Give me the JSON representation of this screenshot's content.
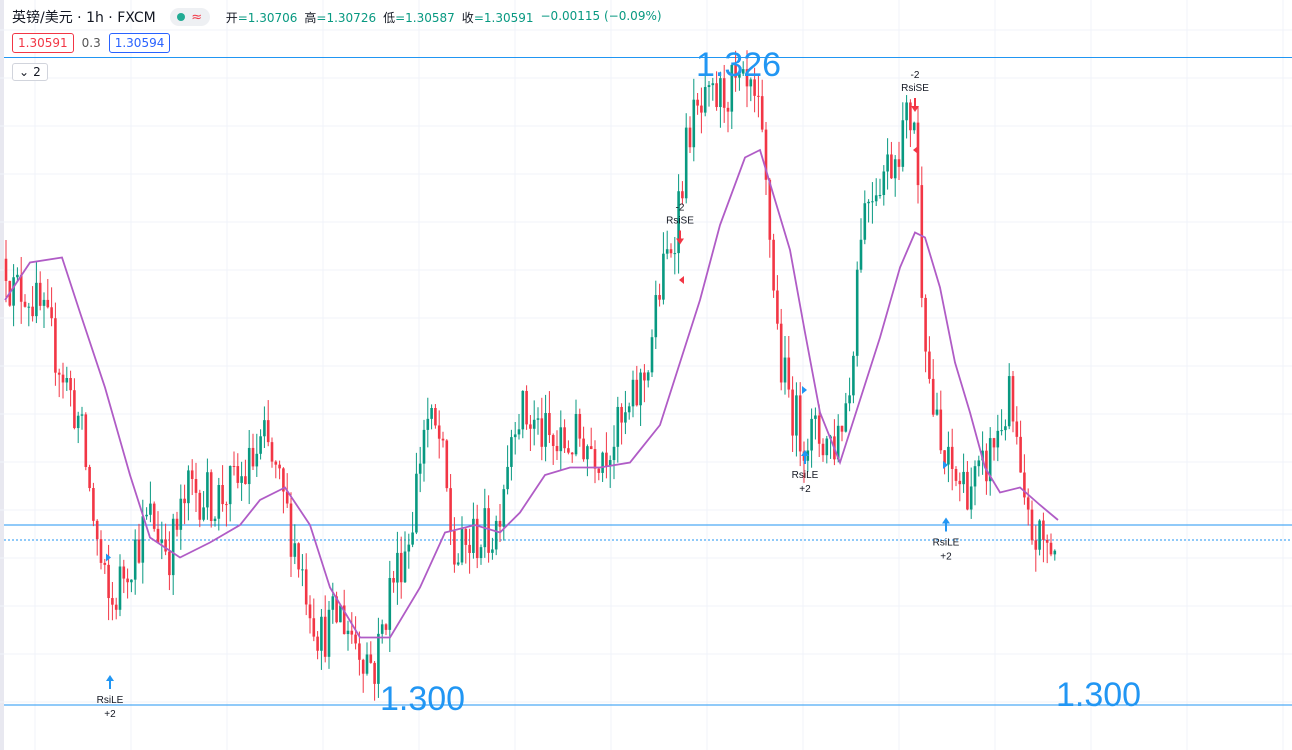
{
  "header": {
    "symbol": "英镑/美元 · 1h · FXCM",
    "market_status_icon": "green-dot-icon",
    "replay_icon": "wave-icon",
    "wave_glyph": "≈",
    "open_label": "开",
    "open_value": "=1.30706",
    "high_label": "高",
    "high_value": "=1.30726",
    "low_label": "低",
    "low_value": "=1.30587",
    "close_label": "收",
    "close_value": "=1.30591",
    "change": "−0.00115 (−0.09%)"
  },
  "trade": {
    "sell_price": "1.30591",
    "spread": "0.3",
    "buy_price": "1.30594"
  },
  "indicators_toggle": {
    "chevron": "⌄",
    "count": "2"
  },
  "annotations": {
    "top_level": "1.326",
    "bottom_level_left": "1.300",
    "bottom_level_right": "1.300"
  },
  "colors": {
    "up": "#089981",
    "down": "#f23645",
    "ma": "#b05cc6",
    "hline": "#2196f3",
    "arrow_buy": "#2196f3",
    "arrow_sell": "#f23645"
  },
  "chart_data": {
    "type": "candlestick",
    "symbol": "GBP/USD",
    "interval": "1h",
    "ylim": [
      1.2985,
      1.3285
    ],
    "horizontal_lines": [
      1.3262,
      1.3003,
      1.3075,
      1.3069
    ],
    "close_path": [
      [
        0,
        1.3195
      ],
      [
        12,
        1.3168
      ],
      [
        25,
        1.317
      ],
      [
        40,
        1.316
      ],
      [
        60,
        1.314
      ],
      [
        80,
        1.3115
      ],
      [
        100,
        1.306
      ],
      [
        110,
        1.304
      ],
      [
        125,
        1.3058
      ],
      [
        150,
        1.3078
      ],
      [
        170,
        1.3065
      ],
      [
        190,
        1.309
      ],
      [
        215,
        1.3085
      ],
      [
        240,
        1.3092
      ],
      [
        265,
        1.3108
      ],
      [
        285,
        1.3082
      ],
      [
        300,
        1.306
      ],
      [
        320,
        1.303
      ],
      [
        340,
        1.304
      ],
      [
        355,
        1.303
      ],
      [
        375,
        1.3018
      ],
      [
        390,
        1.305
      ],
      [
        410,
        1.3072
      ],
      [
        425,
        1.3118
      ],
      [
        440,
        1.3108
      ],
      [
        455,
        1.306
      ],
      [
        475,
        1.307
      ],
      [
        495,
        1.3072
      ],
      [
        515,
        1.3122
      ],
      [
        535,
        1.3115
      ],
      [
        555,
        1.3105
      ],
      [
        580,
        1.311
      ],
      [
        600,
        1.3105
      ],
      [
        625,
        1.3115
      ],
      [
        645,
        1.3135
      ],
      [
        660,
        1.317
      ],
      [
        675,
        1.3195
      ],
      [
        690,
        1.3235
      ],
      [
        710,
        1.3242
      ],
      [
        730,
        1.325
      ],
      [
        750,
        1.3245
      ],
      [
        760,
        1.3235
      ],
      [
        770,
        1.319
      ],
      [
        780,
        1.314
      ],
      [
        790,
        1.3125
      ],
      [
        800,
        1.3112
      ],
      [
        820,
        1.311
      ],
      [
        835,
        1.3108
      ],
      [
        850,
        1.313
      ],
      [
        860,
        1.3195
      ],
      [
        870,
        1.321
      ],
      [
        890,
        1.322
      ],
      [
        905,
        1.3235
      ],
      [
        915,
        1.324
      ],
      [
        920,
        1.3185
      ],
      [
        930,
        1.313
      ],
      [
        942,
        1.31
      ],
      [
        960,
        1.3092
      ],
      [
        980,
        1.3092
      ],
      [
        1000,
        1.3115
      ],
      [
        1010,
        1.3125
      ],
      [
        1018,
        1.31
      ],
      [
        1025,
        1.3075
      ],
      [
        1040,
        1.3068
      ],
      [
        1055,
        1.3066
      ]
    ],
    "ma_path": [
      [
        5,
        1.3165
      ],
      [
        30,
        1.318
      ],
      [
        62,
        1.3182
      ],
      [
        80,
        1.316
      ],
      [
        105,
        1.313
      ],
      [
        130,
        1.3095
      ],
      [
        150,
        1.307
      ],
      [
        180,
        1.3062
      ],
      [
        210,
        1.3068
      ],
      [
        240,
        1.3075
      ],
      [
        260,
        1.3085
      ],
      [
        285,
        1.309
      ],
      [
        310,
        1.3075
      ],
      [
        330,
        1.305
      ],
      [
        360,
        1.303
      ],
      [
        390,
        1.303
      ],
      [
        420,
        1.305
      ],
      [
        445,
        1.3072
      ],
      [
        475,
        1.3075
      ],
      [
        500,
        1.3072
      ],
      [
        520,
        1.308
      ],
      [
        545,
        1.3095
      ],
      [
        570,
        1.3098
      ],
      [
        600,
        1.3098
      ],
      [
        630,
        1.31
      ],
      [
        660,
        1.3115
      ],
      [
        680,
        1.314
      ],
      [
        700,
        1.3165
      ],
      [
        720,
        1.3195
      ],
      [
        745,
        1.3222
      ],
      [
        760,
        1.3225
      ],
      [
        775,
        1.3205
      ],
      [
        790,
        1.3185
      ],
      [
        805,
        1.3152
      ],
      [
        820,
        1.312
      ],
      [
        840,
        1.31
      ],
      [
        860,
        1.3125
      ],
      [
        880,
        1.315
      ],
      [
        900,
        1.3178
      ],
      [
        915,
        1.3192
      ],
      [
        925,
        1.319
      ],
      [
        940,
        1.317
      ],
      [
        955,
        1.314
      ],
      [
        970,
        1.312
      ],
      [
        985,
        1.3098
      ],
      [
        1000,
        1.3088
      ],
      [
        1020,
        1.309
      ],
      [
        1040,
        1.3083
      ],
      [
        1058,
        1.3077
      ]
    ],
    "signals": [
      {
        "type": "RsiLE",
        "qty": "+2",
        "x": 110,
        "price": 1.3015,
        "dir": "up"
      },
      {
        "type": "RsiSE",
        "qty": "-2",
        "x": 680,
        "price": 1.319,
        "dir": "down"
      },
      {
        "type": "RsiLE",
        "qty": "+2",
        "x": 805,
        "price": 1.3105,
        "dir": "up"
      },
      {
        "type": "RsiSE",
        "qty": "-2",
        "x": 915,
        "price": 1.3243,
        "dir": "down"
      },
      {
        "type": "RsiLE",
        "qty": "+2",
        "x": 946,
        "price": 1.3078,
        "dir": "up"
      }
    ],
    "entry_markers": [
      {
        "x": 106,
        "price": 1.3062,
        "side": "buy"
      },
      {
        "x": 684,
        "price": 1.3173,
        "side": "sell"
      },
      {
        "x": 802,
        "price": 1.3129,
        "side": "buy"
      },
      {
        "x": 918,
        "price": 1.3225,
        "side": "sell"
      },
      {
        "x": 943,
        "price": 1.3099,
        "side": "buy"
      }
    ]
  }
}
